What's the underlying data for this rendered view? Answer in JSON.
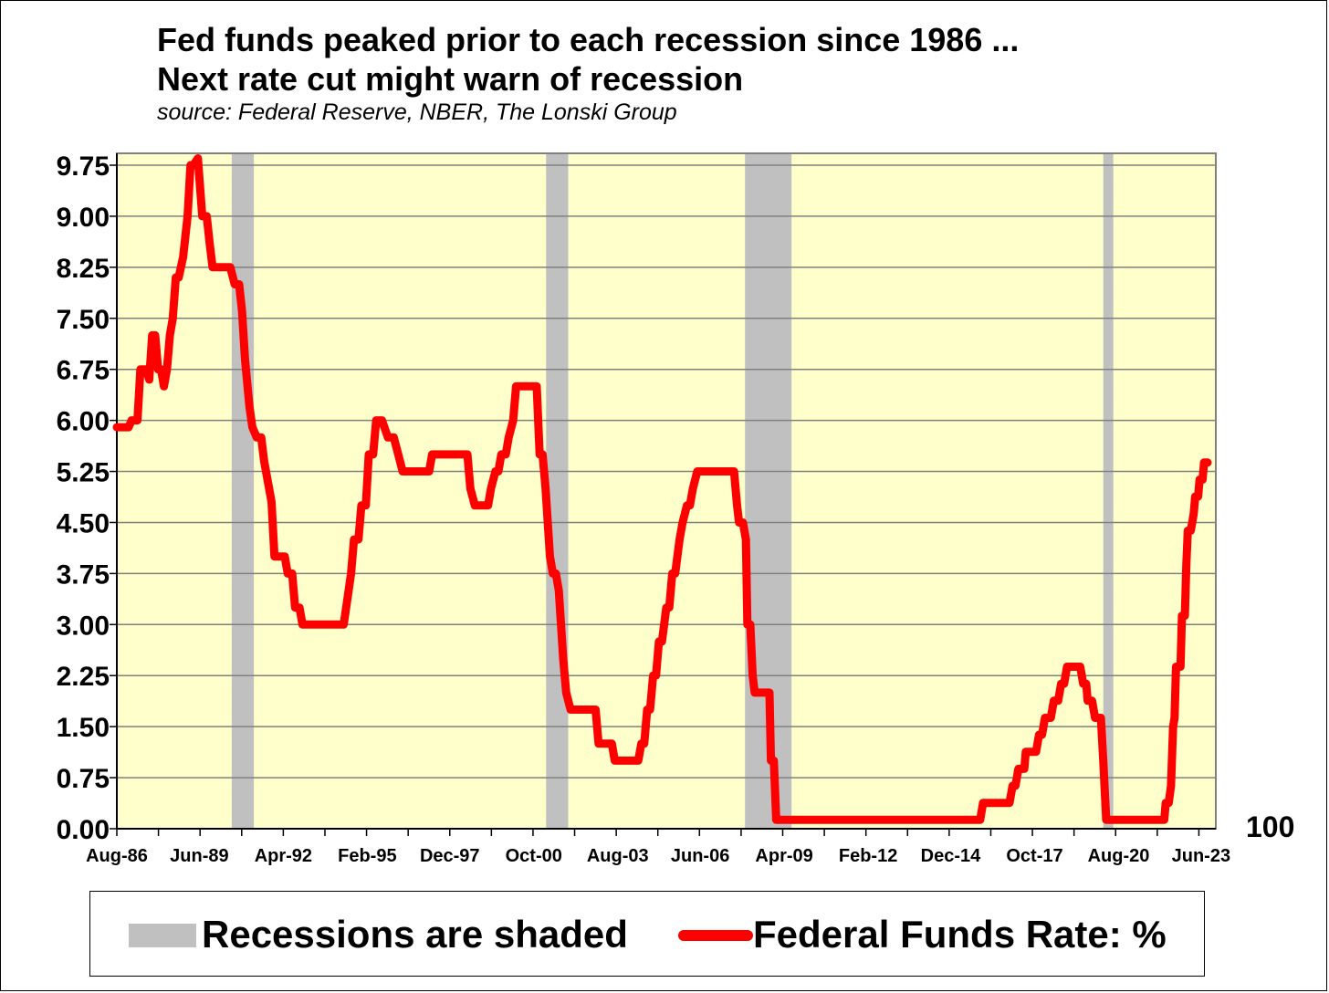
{
  "chart_data": {
    "type": "line",
    "title": "Fed funds peaked prior to each recession since 1986 ...",
    "title_line2": "Next rate cut might warn of recession",
    "subtitle": "source: Federal Reserve, NBER, The Lonski Group",
    "ylim": [
      0,
      9.75
    ],
    "yticks": [
      "0.00",
      "0.75",
      "1.50",
      "2.25",
      "3.00",
      "3.75",
      "4.50",
      "5.25",
      "6.00",
      "6.75",
      "7.50",
      "8.25",
      "9.00",
      "9.75"
    ],
    "xlim": [
      1986.6,
      2023.9
    ],
    "xticks": [
      {
        "label": "Aug-86",
        "t": 1986.6
      },
      {
        "label": "Jun-89",
        "t": 1989.4
      },
      {
        "label": "Apr-92",
        "t": 1992.25
      },
      {
        "label": "Feb-95",
        "t": 1995.1
      },
      {
        "label": "Dec-97",
        "t": 1997.9
      },
      {
        "label": "Oct-00",
        "t": 2000.75
      },
      {
        "label": "Aug-03",
        "t": 2003.6
      },
      {
        "label": "Jun-06",
        "t": 2006.4
      },
      {
        "label": "Apr-09",
        "t": 2009.25
      },
      {
        "label": "Feb-12",
        "t": 2012.1
      },
      {
        "label": "Dec-14",
        "t": 2014.9
      },
      {
        "label": "Oct-17",
        "t": 2017.75
      },
      {
        "label": "Aug-20",
        "t": 2020.6
      },
      {
        "label": "Jun-23",
        "t": 2023.4
      }
    ],
    "minor_tick_step_years": 1.4125,
    "right_axis_label": "100",
    "recessions": [
      {
        "start": 1990.5,
        "end": 1991.25
      },
      {
        "start": 2001.17,
        "end": 2001.92
      },
      {
        "start": 2007.92,
        "end": 2009.5
      },
      {
        "start": 2020.08,
        "end": 2020.42
      }
    ],
    "series": [
      {
        "name": "Federal Funds Rate: %",
        "color": "#ff0000",
        "points": [
          [
            1986.6,
            5.9
          ],
          [
            1987.0,
            5.9
          ],
          [
            1987.1,
            6.0
          ],
          [
            1987.3,
            6.0
          ],
          [
            1987.4,
            6.75
          ],
          [
            1987.6,
            6.75
          ],
          [
            1987.7,
            6.6
          ],
          [
            1987.8,
            7.25
          ],
          [
            1987.9,
            7.25
          ],
          [
            1988.0,
            6.75
          ],
          [
            1988.1,
            6.75
          ],
          [
            1988.2,
            6.5
          ],
          [
            1988.3,
            6.75
          ],
          [
            1988.4,
            7.25
          ],
          [
            1988.5,
            7.5
          ],
          [
            1988.6,
            8.1
          ],
          [
            1988.7,
            8.1
          ],
          [
            1988.85,
            8.4
          ],
          [
            1989.0,
            9.0
          ],
          [
            1989.1,
            9.75
          ],
          [
            1989.2,
            9.75
          ],
          [
            1989.35,
            9.85
          ],
          [
            1989.5,
            9.0
          ],
          [
            1989.65,
            9.0
          ],
          [
            1989.75,
            8.6
          ],
          [
            1989.85,
            8.25
          ],
          [
            1990.0,
            8.25
          ],
          [
            1990.3,
            8.25
          ],
          [
            1990.45,
            8.25
          ],
          [
            1990.6,
            8.0
          ],
          [
            1990.75,
            8.0
          ],
          [
            1990.85,
            7.6
          ],
          [
            1990.95,
            6.9
          ],
          [
            1991.1,
            6.2
          ],
          [
            1991.2,
            5.9
          ],
          [
            1991.35,
            5.75
          ],
          [
            1991.5,
            5.75
          ],
          [
            1991.6,
            5.4
          ],
          [
            1991.85,
            4.8
          ],
          [
            1991.95,
            4.0
          ],
          [
            1992.1,
            4.0
          ],
          [
            1992.3,
            4.0
          ],
          [
            1992.4,
            3.75
          ],
          [
            1992.55,
            3.75
          ],
          [
            1992.65,
            3.25
          ],
          [
            1992.8,
            3.25
          ],
          [
            1992.9,
            3.0
          ],
          [
            1993.5,
            3.0
          ],
          [
            1994.0,
            3.0
          ],
          [
            1994.3,
            3.0
          ],
          [
            1994.4,
            3.3
          ],
          [
            1994.55,
            3.75
          ],
          [
            1994.65,
            4.25
          ],
          [
            1994.8,
            4.25
          ],
          [
            1994.9,
            4.75
          ],
          [
            1995.05,
            4.75
          ],
          [
            1995.15,
            5.5
          ],
          [
            1995.3,
            5.5
          ],
          [
            1995.4,
            6.0
          ],
          [
            1995.6,
            6.0
          ],
          [
            1995.8,
            5.75
          ],
          [
            1996.0,
            5.75
          ],
          [
            1996.15,
            5.5
          ],
          [
            1996.3,
            5.25
          ],
          [
            1996.8,
            5.25
          ],
          [
            1997.2,
            5.25
          ],
          [
            1997.3,
            5.5
          ],
          [
            1997.8,
            5.5
          ],
          [
            1998.3,
            5.5
          ],
          [
            1998.5,
            5.5
          ],
          [
            1998.6,
            5.0
          ],
          [
            1998.75,
            4.75
          ],
          [
            1999.0,
            4.75
          ],
          [
            1999.2,
            4.75
          ],
          [
            1999.3,
            5.0
          ],
          [
            1999.45,
            5.25
          ],
          [
            1999.55,
            5.25
          ],
          [
            1999.65,
            5.5
          ],
          [
            1999.8,
            5.5
          ],
          [
            1999.9,
            5.75
          ],
          [
            2000.05,
            6.0
          ],
          [
            2000.15,
            6.5
          ],
          [
            2000.5,
            6.5
          ],
          [
            2000.85,
            6.5
          ],
          [
            2000.95,
            5.5
          ],
          [
            2001.05,
            5.5
          ],
          [
            2001.15,
            5.0
          ],
          [
            2001.3,
            4.0
          ],
          [
            2001.4,
            3.75
          ],
          [
            2001.5,
            3.75
          ],
          [
            2001.6,
            3.5
          ],
          [
            2001.75,
            2.5
          ],
          [
            2001.85,
            2.0
          ],
          [
            2002.0,
            1.75
          ],
          [
            2002.5,
            1.75
          ],
          [
            2002.85,
            1.75
          ],
          [
            2002.95,
            1.25
          ],
          [
            2003.2,
            1.25
          ],
          [
            2003.4,
            1.25
          ],
          [
            2003.5,
            1.0
          ],
          [
            2004.0,
            1.0
          ],
          [
            2004.3,
            1.0
          ],
          [
            2004.4,
            1.25
          ],
          [
            2004.5,
            1.25
          ],
          [
            2004.6,
            1.75
          ],
          [
            2004.7,
            1.75
          ],
          [
            2004.8,
            2.25
          ],
          [
            2004.9,
            2.25
          ],
          [
            2005.0,
            2.75
          ],
          [
            2005.1,
            2.75
          ],
          [
            2005.25,
            3.25
          ],
          [
            2005.35,
            3.25
          ],
          [
            2005.45,
            3.75
          ],
          [
            2005.55,
            3.75
          ],
          [
            2005.7,
            4.25
          ],
          [
            2005.8,
            4.5
          ],
          [
            2005.95,
            4.75
          ],
          [
            2006.05,
            4.75
          ],
          [
            2006.15,
            5.0
          ],
          [
            2006.3,
            5.25
          ],
          [
            2007.0,
            5.25
          ],
          [
            2007.55,
            5.25
          ],
          [
            2007.65,
            4.75
          ],
          [
            2007.72,
            4.5
          ],
          [
            2007.85,
            4.5
          ],
          [
            2007.95,
            4.25
          ],
          [
            2008.0,
            3.0
          ],
          [
            2008.1,
            3.0
          ],
          [
            2008.18,
            2.25
          ],
          [
            2008.25,
            2.0
          ],
          [
            2008.5,
            2.0
          ],
          [
            2008.75,
            2.0
          ],
          [
            2008.8,
            1.0
          ],
          [
            2008.9,
            1.0
          ],
          [
            2008.98,
            0.13
          ],
          [
            2010.0,
            0.13
          ],
          [
            2012.0,
            0.13
          ],
          [
            2014.0,
            0.13
          ],
          [
            2015.9,
            0.13
          ],
          [
            2016.0,
            0.38
          ],
          [
            2016.5,
            0.38
          ],
          [
            2016.9,
            0.38
          ],
          [
            2017.0,
            0.63
          ],
          [
            2017.1,
            0.63
          ],
          [
            2017.2,
            0.88
          ],
          [
            2017.4,
            0.88
          ],
          [
            2017.45,
            1.13
          ],
          [
            2017.8,
            1.13
          ],
          [
            2017.9,
            1.38
          ],
          [
            2018.0,
            1.38
          ],
          [
            2018.1,
            1.63
          ],
          [
            2018.3,
            1.63
          ],
          [
            2018.4,
            1.88
          ],
          [
            2018.55,
            1.88
          ],
          [
            2018.65,
            2.13
          ],
          [
            2018.75,
            2.13
          ],
          [
            2018.85,
            2.38
          ],
          [
            2019.0,
            2.38
          ],
          [
            2019.3,
            2.38
          ],
          [
            2019.4,
            2.13
          ],
          [
            2019.5,
            2.13
          ],
          [
            2019.55,
            1.88
          ],
          [
            2019.7,
            1.88
          ],
          [
            2019.8,
            1.63
          ],
          [
            2020.0,
            1.63
          ],
          [
            2020.08,
            1.0
          ],
          [
            2020.18,
            0.13
          ],
          [
            2021.0,
            0.13
          ],
          [
            2022.0,
            0.13
          ],
          [
            2022.15,
            0.13
          ],
          [
            2022.2,
            0.38
          ],
          [
            2022.3,
            0.38
          ],
          [
            2022.38,
            0.63
          ],
          [
            2022.45,
            1.5
          ],
          [
            2022.5,
            1.63
          ],
          [
            2022.55,
            2.38
          ],
          [
            2022.7,
            2.38
          ],
          [
            2022.75,
            3.13
          ],
          [
            2022.85,
            3.13
          ],
          [
            2022.9,
            3.88
          ],
          [
            2022.95,
            4.38
          ],
          [
            2023.05,
            4.38
          ],
          [
            2023.15,
            4.63
          ],
          [
            2023.2,
            4.88
          ],
          [
            2023.3,
            4.88
          ],
          [
            2023.35,
            5.13
          ],
          [
            2023.45,
            5.13
          ],
          [
            2023.5,
            5.38
          ],
          [
            2023.62,
            5.38
          ]
        ]
      }
    ],
    "legend": [
      {
        "label": "Recessions are shaded",
        "kind": "box",
        "color": "#c0c0c0"
      },
      {
        "label": "Federal Funds Rate: %",
        "kind": "line",
        "color": "#ff0000"
      }
    ],
    "colors": {
      "plot_bg": "#ffffcc",
      "grid": "#808080",
      "recession": "#c0c0c0",
      "line": "#ff0000"
    }
  }
}
